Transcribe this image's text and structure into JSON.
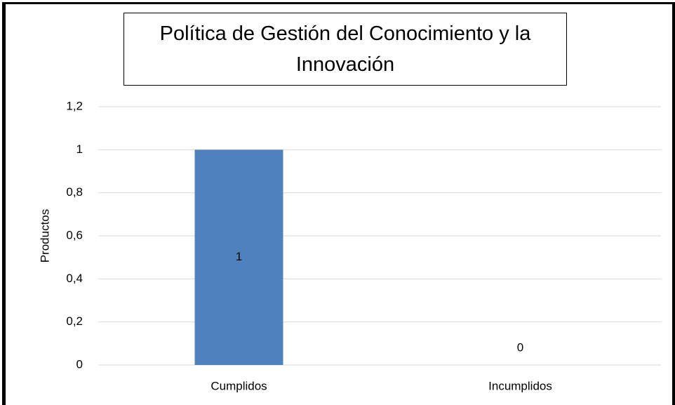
{
  "chart_data": {
    "type": "bar",
    "title": "Política de Gestión del Conocimiento y la Innovación",
    "y_label": "Productos",
    "categories": [
      "Cumplidos",
      "Incumplidos"
    ],
    "values": [
      1,
      0
    ],
    "color": "#4f81bd",
    "ylim": [
      0,
      1.2
    ],
    "yticks": [
      0,
      {
        "value": 0.2,
        "label": "0,2"
      },
      {
        "value": 0.4,
        "label": "0,4"
      },
      {
        "value": 0.6,
        "label": "0,6"
      },
      {
        "value": 0.8,
        "label": "0,8"
      },
      1,
      {
        "value": 1.2,
        "label": "1,2"
      }
    ],
    "grid": true
  }
}
